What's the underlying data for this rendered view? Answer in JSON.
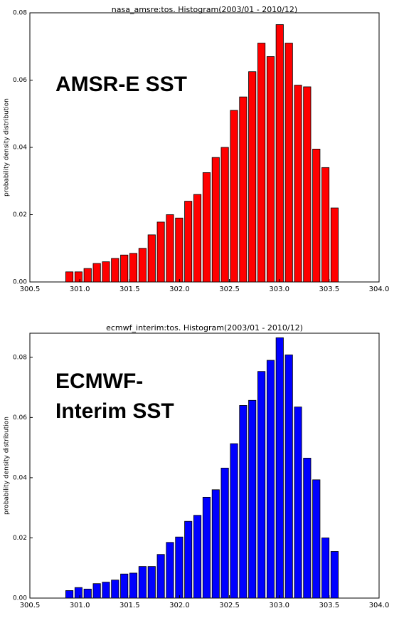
{
  "chart_data": [
    {
      "type": "histogram",
      "title": "nasa_amsre:tos. Histogram(2003/01 - 2010/12)",
      "y_label": "probability density distribution",
      "annotation": [
        "AMSR-E SST"
      ],
      "color": "#ff0000",
      "bins": [
        300.85,
        300.942,
        301.033,
        301.125,
        301.217,
        301.308,
        301.4,
        301.492,
        301.583,
        301.675,
        301.767,
        301.858,
        301.95,
        302.042,
        302.133,
        302.225,
        302.317,
        302.408,
        302.5,
        302.592,
        302.683,
        302.775,
        302.867,
        302.958,
        303.05,
        303.142,
        303.233,
        303.325,
        303.417,
        303.508,
        303.6
      ],
      "values": [
        0.003,
        0.003,
        0.004,
        0.0055,
        0.006,
        0.007,
        0.008,
        0.0085,
        0.01,
        0.014,
        0.0178,
        0.02,
        0.019,
        0.024,
        0.026,
        0.0325,
        0.037,
        0.04,
        0.051,
        0.055,
        0.0625,
        0.071,
        0.067,
        0.0765,
        0.071,
        0.0585,
        0.058,
        0.0395,
        0.034,
        0.022
      ],
      "xlim": [
        300.5,
        304.0
      ],
      "xticks": [
        300.5,
        {
          "value": 301.0,
          "label": "301.0"
        },
        301.5,
        {
          "value": 302.0,
          "label": "302.0"
        },
        302.5,
        {
          "value": 303.0,
          "label": "303.0"
        },
        303.5,
        {
          "value": 304.0,
          "label": "304.0"
        }
      ],
      "ylim": [
        0,
        0.08
      ],
      "yticks": [
        {
          "value": 0,
          "label": "0.00"
        },
        0.02,
        0.04,
        0.06,
        0.08
      ]
    },
    {
      "type": "histogram",
      "title": "ecmwf_interim:tos. Histogram(2003/01 - 2010/12)",
      "y_label": "probability density distribution",
      "annotation": [
        "ECMWF-",
        "Interim SST"
      ],
      "color": "#0000ff",
      "bins": [
        300.85,
        300.942,
        301.033,
        301.125,
        301.217,
        301.308,
        301.4,
        301.492,
        301.583,
        301.675,
        301.767,
        301.858,
        301.95,
        302.042,
        302.133,
        302.225,
        302.317,
        302.408,
        302.5,
        302.592,
        302.683,
        302.775,
        302.867,
        302.958,
        303.05,
        303.142,
        303.233,
        303.325,
        303.417,
        303.508,
        303.6
      ],
      "values": [
        0.0025,
        0.0035,
        0.003,
        0.0048,
        0.0053,
        0.006,
        0.008,
        0.0083,
        0.0105,
        0.0105,
        0.0145,
        0.0185,
        0.0203,
        0.0255,
        0.0275,
        0.0335,
        0.036,
        0.0432,
        0.0513,
        0.064,
        0.0657,
        0.0753,
        0.079,
        0.0865,
        0.0808,
        0.0635,
        0.0465,
        0.0393,
        0.02,
        0.0155
      ],
      "xlim": [
        300.5,
        304.0
      ],
      "xticks": [
        300.5,
        {
          "value": 301.0,
          "label": "301.0"
        },
        301.5,
        {
          "value": 302.0,
          "label": "302.0"
        },
        302.5,
        {
          "value": 303.0,
          "label": "303.0"
        },
        303.5,
        {
          "value": 304.0,
          "label": "304.0"
        }
      ],
      "ylim": [
        0,
        0.088
      ],
      "yticks": [
        {
          "value": 0,
          "label": "0.00"
        },
        0.02,
        0.04,
        0.06,
        0.08
      ]
    }
  ]
}
